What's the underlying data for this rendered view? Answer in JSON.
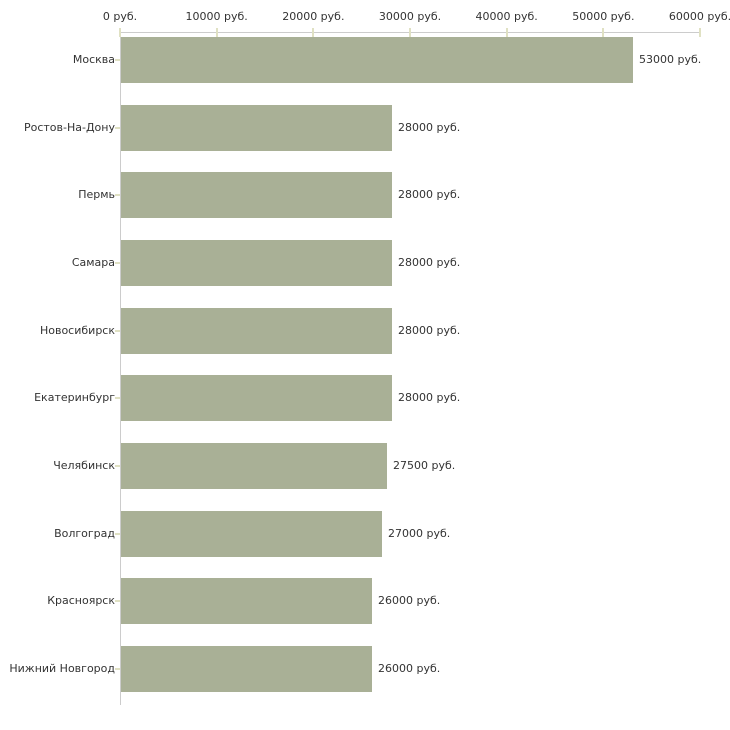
{
  "chart_data": {
    "type": "bar",
    "orientation": "horizontal",
    "title": "",
    "xlabel": "",
    "ylabel": "",
    "unit": "руб.",
    "categories": [
      "Москва",
      "Ростов-На-Дону",
      "Пермь",
      "Самара",
      "Новосибирск",
      "Екатеринбург",
      "Челябинск",
      "Волгоград",
      "Красноярск",
      "Нижний Новгород"
    ],
    "values": [
      53000,
      28000,
      28000,
      28000,
      28000,
      28000,
      27500,
      27000,
      26000,
      26000
    ],
    "value_labels": [
      "53000 руб.",
      "28000 руб.",
      "28000 руб.",
      "28000 руб.",
      "28000 руб.",
      "28000 руб.",
      "27500 руб.",
      "27000 руб.",
      "26000 руб.",
      "26000 руб."
    ],
    "x_axis": {
      "min": 0,
      "max": 60000,
      "ticks": [
        0,
        10000,
        20000,
        30000,
        40000,
        50000,
        60000
      ],
      "tick_labels": [
        "0 руб.",
        "10000 руб.",
        "20000 руб.",
        "30000 руб.",
        "40000 руб.",
        "50000 руб.",
        "60000 руб."
      ]
    },
    "legend": null,
    "grid": false,
    "colors": {
      "bar": "#a9b096",
      "axis_line": "#cccccc",
      "tick_mark": "#e0e1c3",
      "text": "#333333",
      "background": "#ffffff"
    }
  }
}
